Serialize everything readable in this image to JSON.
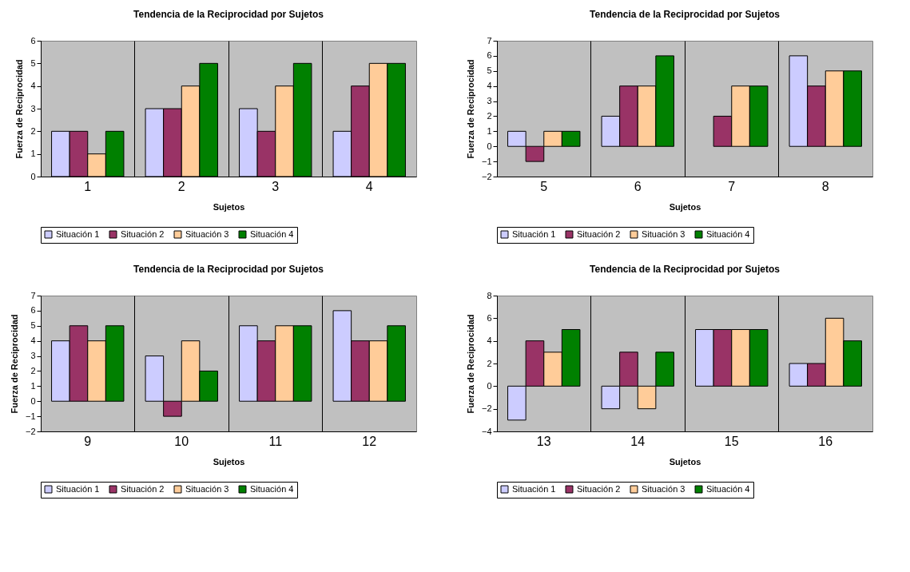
{
  "chart_data": [
    {
      "type": "bar",
      "title": "Tendencia de la Reciprocidad por Sujetos",
      "xlabel": "Sujetos",
      "ylabel": "Fuerza de Reciprocidad",
      "categories": [
        "1",
        "2",
        "3",
        "4"
      ],
      "ylim": [
        0,
        6
      ],
      "yticks": [
        0,
        1,
        2,
        3,
        4,
        5,
        6
      ],
      "grid": "x",
      "legend": "bottom",
      "series": [
        {
          "name": "Situación 1",
          "color": "#ccccff",
          "values": [
            2,
            3,
            3,
            2
          ]
        },
        {
          "name": "Situación 2",
          "color": "#993366",
          "values": [
            2,
            3,
            2,
            4
          ]
        },
        {
          "name": "Situación 3",
          "color": "#ffcc99",
          "values": [
            1,
            4,
            4,
            5
          ]
        },
        {
          "name": "Situación 4",
          "color": "#008000",
          "values": [
            2,
            5,
            5,
            5
          ]
        }
      ]
    },
    {
      "type": "bar",
      "title": "Tendencia de la Reciprocidad por Sujetos",
      "xlabel": "Sujetos",
      "ylabel": "Fuerza de Reciprocidad",
      "categories": [
        "5",
        "6",
        "7",
        "8"
      ],
      "ylim": [
        -2,
        7
      ],
      "yticks": [
        -2,
        -1,
        0,
        1,
        2,
        3,
        4,
        5,
        6,
        7
      ],
      "grid": "x",
      "legend": "bottom",
      "series": [
        {
          "name": "Situación 1",
          "color": "#ccccff",
          "values": [
            1,
            2,
            null,
            6
          ]
        },
        {
          "name": "Situación 2",
          "color": "#993366",
          "values": [
            -1,
            4,
            2,
            4
          ]
        },
        {
          "name": "Situación 3",
          "color": "#ffcc99",
          "values": [
            1,
            4,
            4,
            5
          ]
        },
        {
          "name": "Situación 4",
          "color": "#008000",
          "values": [
            1,
            6,
            4,
            5
          ]
        }
      ]
    },
    {
      "type": "bar",
      "title": "Tendencia de la Reciprocidad por Sujetos",
      "xlabel": "Sujetos",
      "ylabel": "Fuerza de Reciprocidad",
      "categories": [
        "9",
        "10",
        "11",
        "12"
      ],
      "ylim": [
        -2,
        7
      ],
      "yticks": [
        -2,
        -1,
        0,
        1,
        2,
        3,
        4,
        5,
        6,
        7
      ],
      "grid": "x",
      "legend": "bottom",
      "series": [
        {
          "name": "Situación 1",
          "color": "#ccccff",
          "values": [
            4,
            3,
            5,
            6
          ]
        },
        {
          "name": "Situación 2",
          "color": "#993366",
          "values": [
            5,
            -1,
            4,
            4
          ]
        },
        {
          "name": "Situación 3",
          "color": "#ffcc99",
          "values": [
            4,
            4,
            5,
            4
          ]
        },
        {
          "name": "Situación 4",
          "color": "#008000",
          "values": [
            5,
            2,
            5,
            5
          ]
        }
      ]
    },
    {
      "type": "bar",
      "title": "Tendencia de la Reciprocidad por Sujetos",
      "xlabel": "Sujetos",
      "ylabel": "Fuerza de Reciprocidad",
      "categories": [
        "13",
        "14",
        "15",
        "16"
      ],
      "ylim": [
        -4,
        8
      ],
      "yticks": [
        -4,
        -2,
        0,
        2,
        4,
        6,
        8
      ],
      "grid": "x",
      "legend": "bottom",
      "series": [
        {
          "name": "Situación 1",
          "color": "#ccccff",
          "values": [
            -3,
            -2,
            5,
            2
          ]
        },
        {
          "name": "Situación 2",
          "color": "#993366",
          "values": [
            4,
            3,
            5,
            2
          ]
        },
        {
          "name": "Situación 3",
          "color": "#ffcc99",
          "values": [
            3,
            -2,
            5,
            6
          ]
        },
        {
          "name": "Situación 4",
          "color": "#008000",
          "values": [
            5,
            3,
            5,
            4
          ]
        }
      ]
    }
  ]
}
